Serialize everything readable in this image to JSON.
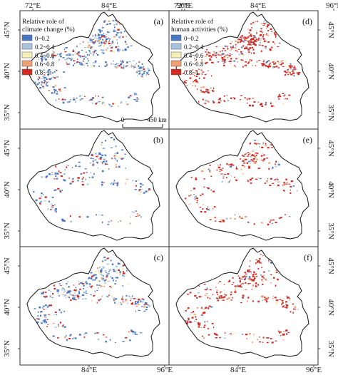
{
  "top_labels": [
    "72°E",
    "84°E",
    "96°E"
  ],
  "bottom_labels": [
    "84°E",
    "96°E"
  ],
  "left_labels": [
    "45°N",
    "40°N",
    "35°N"
  ],
  "right_labels": [
    "45°N",
    "40°N",
    "35°N"
  ],
  "panels": [
    {
      "letter": "(a)",
      "scheme": "climate",
      "intensity": 1.0
    },
    {
      "letter": "(d)",
      "scheme": "human",
      "intensity": 1.0
    },
    {
      "letter": "(b)",
      "scheme": "climate",
      "intensity": 0.55
    },
    {
      "letter": "(e)",
      "scheme": "human",
      "intensity": 0.6
    },
    {
      "letter": "(c)",
      "scheme": "climate",
      "intensity": 0.85
    },
    {
      "letter": "(f)",
      "scheme": "human",
      "intensity": 0.75
    }
  ],
  "legend_climate": {
    "title_line1": "Relative role of",
    "title_line2": "climate change (%)"
  },
  "legend_human": {
    "title_line1": "Relative role of",
    "title_line2": "human activities (%)"
  },
  "legend_classes": [
    {
      "label": "0~0.2",
      "color": "#4a78c4"
    },
    {
      "label": "0.2~0.4",
      "color": "#a8c4dc"
    },
    {
      "label": "0.4~0.6",
      "color": "#f5f0b8"
    },
    {
      "label": "0.6~0.8",
      "color": "#f0a070"
    },
    {
      "label": "0.8~1",
      "color": "#d42a24"
    }
  ],
  "scale_bar": {
    "start_label": "0",
    "end_label": "450 km"
  }
}
